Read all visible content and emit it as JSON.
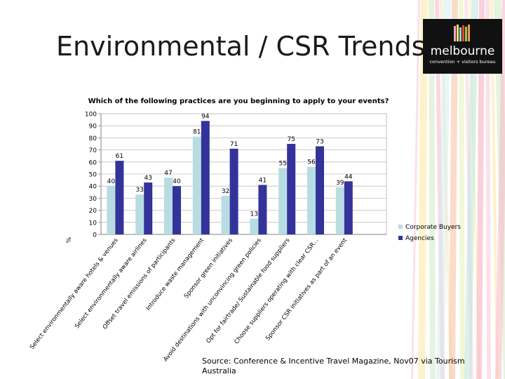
{
  "slide": {
    "title": "Environmental / CSR Trends",
    "source": "Source: Conference & Incentive Travel Magazine, Nov07 via Tourism Australia"
  },
  "logo": {
    "word": "melbourne",
    "tagline": "convention + visitors bureau"
  },
  "chart_data": {
    "type": "bar",
    "title": "Which of the following practices are you beginning to apply to your events?",
    "ylabel": "%",
    "xlabel": "",
    "ylim": [
      0,
      100
    ],
    "yticks": [
      0,
      10,
      20,
      30,
      40,
      50,
      60,
      70,
      80,
      90,
      100
    ],
    "grid": true,
    "legend_position": "right",
    "categories": [
      "Select environmentally aware hotels & venues",
      "Select environmentally aware airlines",
      "Offset travel emissions of participants",
      "Introduce waste management",
      "Sponsor green initiatives",
      "Avoid destinations with unconvincing green policies",
      "Opt for fairtrade/ Sustainable food suppliers",
      "Choose suppliers  operating with clear CSR...",
      "Sponsor CSR initiatives as part of an event"
    ],
    "series": [
      {
        "name": "Corporate Buyers",
        "color": "#b7dde2",
        "values": [
          40,
          33,
          47,
          81,
          32,
          13,
          55,
          56,
          39
        ]
      },
      {
        "name": "Agencies",
        "color": "#33339a",
        "values": [
          61,
          43,
          40,
          94,
          71,
          41,
          75,
          73,
          44
        ]
      }
    ]
  }
}
